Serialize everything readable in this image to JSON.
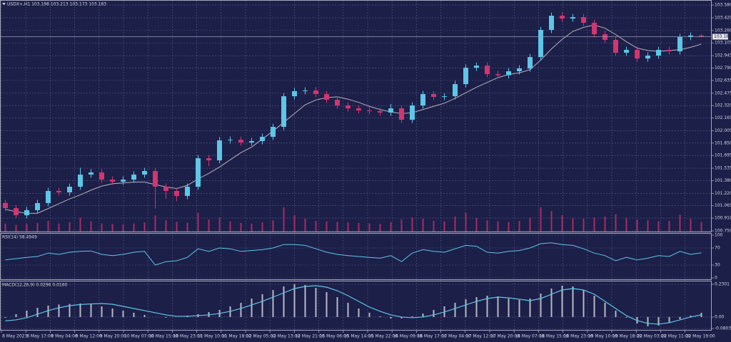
{
  "chart_data": [
    {
      "type": "candlestick",
      "title": "USDX+,H1 103.198 103.213 103.173 103.183",
      "up_color": "#5ec6e6",
      "down_color": "#d2356f",
      "open": [
        101.1,
        101.035,
        100.946,
        101.009,
        101.098,
        101.25,
        101.232,
        101.303,
        101.455,
        101.482,
        101.392,
        101.366,
        101.392,
        101.455,
        101.5,
        101.303,
        101.25,
        101.187,
        101.303,
        101.66,
        101.634,
        101.884,
        101.892,
        101.857,
        101.875,
        101.928,
        102.053,
        102.437,
        102.5,
        102.509,
        102.464,
        102.392,
        102.321,
        102.285,
        102.259,
        102.25,
        102.232,
        102.285,
        102.142,
        102.321,
        102.464,
        102.428,
        102.437,
        102.589,
        102.794,
        102.821,
        102.714,
        102.7,
        102.75,
        102.785,
        102.928,
        103.268,
        103.446,
        103.41,
        103.428,
        103.357,
        103.214,
        103.143,
        102.982,
        103.018,
        102.91,
        102.946,
        103.018,
        103.0,
        103.178,
        103.198
      ],
      "high": [
        101.14,
        101.075,
        101.049,
        101.138,
        101.29,
        101.29,
        101.343,
        101.54,
        101.522,
        101.522,
        101.432,
        101.432,
        101.495,
        101.54,
        101.54,
        101.343,
        101.29,
        101.343,
        101.7,
        101.7,
        101.924,
        101.932,
        101.932,
        101.915,
        101.968,
        102.093,
        102.477,
        102.54,
        102.549,
        102.549,
        102.504,
        102.432,
        102.361,
        102.325,
        102.299,
        102.29,
        102.34,
        102.325,
        102.361,
        102.504,
        102.504,
        102.477,
        102.629,
        102.834,
        102.861,
        102.861,
        102.754,
        102.79,
        102.825,
        102.968,
        103.308,
        103.486,
        103.486,
        103.468,
        103.468,
        103.397,
        103.254,
        103.183,
        103.058,
        103.058,
        102.986,
        103.058,
        103.058,
        103.218,
        103.238,
        103.213
      ],
      "low": [
        100.995,
        100.906,
        100.906,
        100.969,
        101.058,
        101.192,
        101.192,
        101.263,
        101.415,
        101.352,
        101.326,
        101.326,
        101.352,
        101.415,
        101.03,
        101.15,
        101.12,
        101.147,
        101.263,
        101.56,
        101.594,
        101.844,
        101.817,
        101.817,
        101.835,
        101.888,
        102.013,
        102.397,
        102.46,
        102.424,
        102.352,
        102.281,
        102.245,
        102.219,
        102.21,
        102.192,
        102.192,
        102.102,
        102.102,
        102.281,
        102.388,
        102.388,
        102.397,
        102.549,
        102.754,
        102.674,
        102.66,
        102.66,
        102.71,
        102.745,
        102.888,
        103.228,
        103.37,
        103.37,
        103.317,
        103.174,
        103.103,
        102.942,
        102.942,
        102.87,
        102.87,
        102.906,
        102.96,
        102.96,
        103.138,
        103.173
      ],
      "close": [
        101.035,
        100.946,
        101.009,
        101.098,
        101.25,
        101.232,
        101.303,
        101.455,
        101.482,
        101.392,
        101.366,
        101.392,
        101.455,
        101.5,
        101.303,
        101.25,
        101.187,
        101.303,
        101.66,
        101.634,
        101.884,
        101.892,
        101.857,
        101.875,
        101.928,
        102.053,
        102.437,
        102.5,
        102.509,
        102.464,
        102.392,
        102.321,
        102.285,
        102.259,
        102.25,
        102.232,
        102.285,
        102.142,
        102.321,
        102.464,
        102.428,
        102.437,
        102.589,
        102.794,
        102.821,
        102.714,
        102.7,
        102.75,
        102.785,
        102.928,
        103.268,
        103.446,
        103.41,
        103.428,
        103.357,
        103.214,
        103.143,
        102.982,
        103.018,
        102.91,
        102.946,
        103.018,
        103.0,
        103.178,
        103.198,
        103.183
      ],
      "ma": {
        "color": "#b9b2bc",
        "values": [
          101.02,
          100.99,
          100.97,
          100.97,
          101.03,
          101.09,
          101.15,
          101.2,
          101.26,
          101.31,
          101.34,
          101.35,
          101.36,
          101.36,
          101.33,
          101.3,
          101.28,
          101.32,
          101.4,
          101.47,
          101.55,
          101.64,
          101.73,
          101.8,
          101.9,
          102.0,
          102.11,
          102.22,
          102.33,
          102.39,
          102.42,
          102.43,
          102.4,
          102.36,
          102.31,
          102.27,
          102.24,
          102.22,
          102.23,
          102.27,
          102.31,
          102.35,
          102.41,
          102.48,
          102.55,
          102.61,
          102.67,
          102.71,
          102.73,
          102.77,
          102.89,
          103.03,
          103.15,
          103.25,
          103.3,
          103.33,
          103.29,
          103.21,
          103.12,
          103.04,
          103.01,
          103.0,
          103.01,
          103.02,
          103.05,
          103.09
        ]
      },
      "volume": {
        "color": "#a92a68",
        "values": [
          300,
          250,
          280,
          320,
          400,
          300,
          350,
          520,
          380,
          300,
          280,
          260,
          300,
          340,
          600,
          420,
          360,
          330,
          700,
          450,
          520,
          380,
          320,
          300,
          340,
          420,
          900,
          600,
          480,
          400,
          380,
          360,
          340,
          320,
          300,
          280,
          350,
          450,
          520,
          480,
          400,
          380,
          560,
          700,
          500,
          420,
          380,
          360,
          400,
          520,
          900,
          760,
          600,
          500,
          480,
          520,
          560,
          650,
          500,
          440,
          420,
          380,
          400,
          620,
          480,
          360
        ]
      },
      "ylim": [
        100.741,
        103.634
      ],
      "yticks": [
        {
          "value": 103.58,
          "label": "103.580"
        },
        {
          "value": 103.42,
          "label": "103.420"
        },
        {
          "value": 103.26,
          "label": "103.260"
        },
        103.105,
        102.945,
        {
          "value": 102.79,
          "label": "102.790"
        },
        102.635,
        102.475,
        {
          "value": 102.32,
          "label": "102.320"
        },
        102.165,
        102.005,
        {
          "value": 101.85,
          "label": "101.850"
        },
        101.695,
        101.535,
        {
          "value": 101.38,
          "label": "101.380"
        },
        {
          "value": 101.22,
          "label": "101.220"
        },
        101.065,
        {
          "value": 100.91,
          "label": "100.910"
        },
        {
          "value": 100.75,
          "label": "100.750"
        }
      ],
      "grid": true,
      "time_labels": [
        "8 May 2023",
        "8 May 17:00",
        "9 May 04:00",
        "9 May 12:00",
        "9 May 20:00",
        "10 May 07:00",
        "10 May 15:00",
        "10 May 23:00",
        "11 May 10:00",
        "11 May 18:00",
        "12 May 05:00",
        "12 May 13:00",
        "12 May 21:00",
        "15 May 06:00",
        "15 May 14:00",
        "15 May 22:00",
        "16 May 09:00",
        "16 May 17:00",
        "17 May 04:00",
        "17 May 12:00",
        "17 May 20:00",
        "18 May 07:00",
        "18 May 15:00",
        "18 May 23:00",
        "19 May 10:00",
        "19 May 18:00",
        "22 May 03:00",
        "22 May 11:00",
        "22 May 19:00"
      ]
    },
    {
      "type": "line",
      "title": "RSI(14) 58.4949",
      "color": "#5ec6e6",
      "values": [
        42,
        45,
        48,
        50,
        58,
        55,
        60,
        62,
        63,
        55,
        52,
        55,
        60,
        62,
        30,
        38,
        40,
        48,
        68,
        62,
        70,
        68,
        62,
        64,
        66,
        70,
        78,
        78,
        76,
        68,
        60,
        55,
        52,
        50,
        48,
        46,
        52,
        38,
        58,
        66,
        62,
        60,
        68,
        76,
        74,
        60,
        58,
        62,
        64,
        70,
        80,
        82,
        78,
        76,
        68,
        58,
        52,
        40,
        48,
        42,
        46,
        52,
        50,
        62,
        55,
        58.4949
      ],
      "ylim": [
        0,
        100
      ],
      "yticks": [
        100,
        70,
        30,
        0
      ],
      "grid": true
    },
    {
      "type": "macd",
      "title": "MACD(12,26,9) 0.0296 0.0160",
      "histogram": {
        "color": "#b8b8c4",
        "values": [
          -0.005,
          0.02,
          0.045,
          0.065,
          0.08,
          0.088,
          0.092,
          0.095,
          0.09,
          0.075,
          0.06,
          0.045,
          0.03,
          0.015,
          0.0,
          -0.005,
          0.0,
          0.01,
          0.02,
          0.035,
          0.05,
          0.075,
          0.1,
          0.13,
          0.16,
          0.19,
          0.215,
          0.23,
          0.225,
          0.205,
          0.175,
          0.14,
          0.1,
          0.06,
          0.03,
          0.005,
          -0.01,
          -0.01,
          0.005,
          0.025,
          0.05,
          0.075,
          0.1,
          0.125,
          0.14,
          0.15,
          0.145,
          0.13,
          0.12,
          0.13,
          0.165,
          0.2,
          0.22,
          0.215,
          0.19,
          0.15,
          0.1,
          0.045,
          -0.005,
          -0.045,
          -0.065,
          -0.06,
          -0.04,
          -0.015,
          0.01,
          0.0296
        ]
      },
      "signal": {
        "color": "#5ec6e6",
        "values": [
          -0.027,
          -0.02,
          -0.005,
          0.02,
          0.045,
          0.065,
          0.08,
          0.088,
          0.092,
          0.095,
          0.09,
          0.075,
          0.06,
          0.045,
          0.03,
          0.015,
          0.005,
          0.005,
          0.01,
          0.015,
          0.025,
          0.04,
          0.06,
          0.085,
          0.11,
          0.14,
          0.17,
          0.2,
          0.215,
          0.22,
          0.21,
          0.185,
          0.15,
          0.11,
          0.07,
          0.04,
          0.015,
          0.0,
          -0.005,
          0.0,
          0.015,
          0.035,
          0.06,
          0.085,
          0.11,
          0.13,
          0.14,
          0.135,
          0.125,
          0.115,
          0.13,
          0.16,
          0.19,
          0.2,
          0.19,
          0.16,
          0.11,
          0.06,
          0.01,
          -0.025,
          -0.045,
          -0.05,
          -0.04,
          -0.02,
          0.0,
          0.016
        ]
      },
      "ylim": [
        -0.0803,
        0.2301
      ],
      "yticks": [
        0.2301,
        {
          "value": 0,
          "label": "0.00"
        },
        -0.0803
      ],
      "grid": true
    }
  ]
}
